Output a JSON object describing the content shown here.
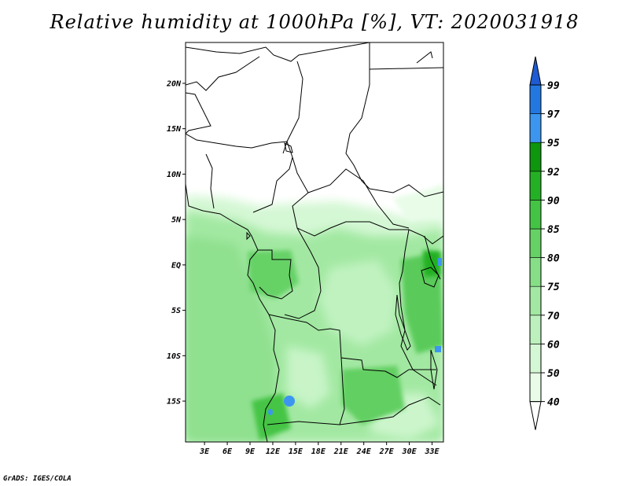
{
  "title": "Relative humidity at 1000hPa [%], VT: 2020031918",
  "credit": "GrADS: IGES/COLA",
  "map": {
    "lat_labels": [
      "20N",
      "15N",
      "10N",
      "5N",
      "EQ",
      "5S",
      "10S",
      "15S"
    ],
    "lon_labels": [
      "3E",
      "6E",
      "9E",
      "12E",
      "15E",
      "18E",
      "21E",
      "24E",
      "27E",
      "30E",
      "33E"
    ],
    "lat_range": [
      -19.5,
      24.5
    ],
    "lon_range": [
      0.5,
      34.5
    ]
  },
  "colorbar": {
    "levels": [
      "40",
      "50",
      "60",
      "70",
      "75",
      "80",
      "85",
      "90",
      "92",
      "95",
      "97",
      "99"
    ],
    "colors": [
      "#ffffff",
      "#e8fce8",
      "#d4f7d4",
      "#bcf0bc",
      "#a2e8a2",
      "#86de86",
      "#66d266",
      "#44c444",
      "#24b024",
      "#0e960e",
      "#3c96f0",
      "#2278e0",
      "#1e5ad2"
    ]
  }
}
